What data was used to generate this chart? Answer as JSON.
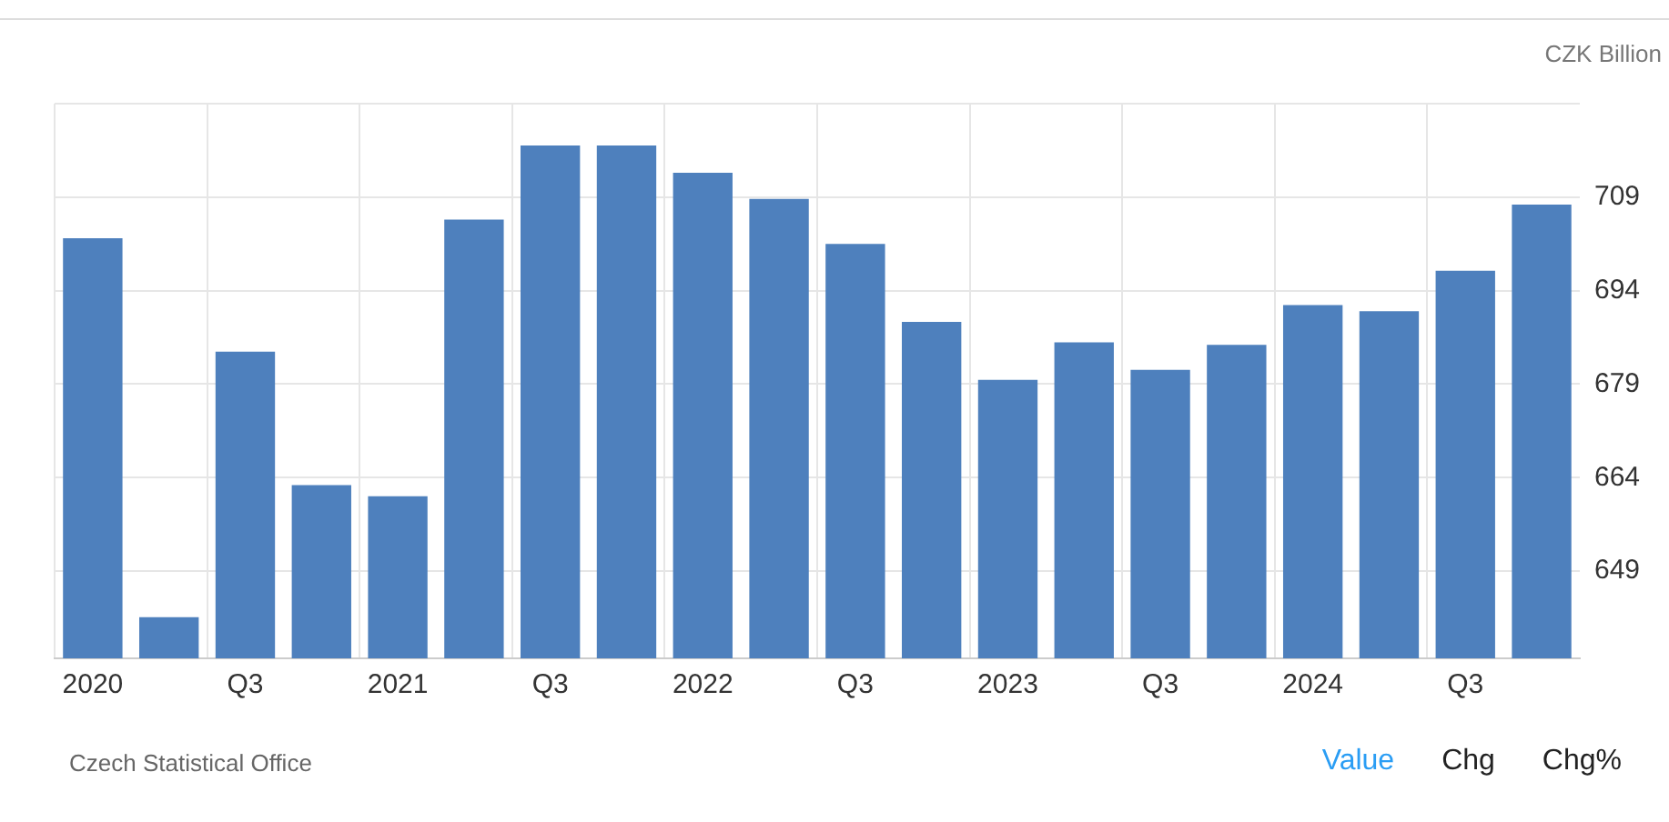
{
  "chart_data": {
    "type": "bar",
    "ylabel": "CZK Billion",
    "categories": [
      "2020",
      null,
      "Q3",
      null,
      "2021",
      null,
      "Q3",
      null,
      "2022",
      null,
      "Q3",
      null,
      "2023",
      null,
      "Q3",
      null,
      "2024",
      null,
      "Q3",
      null
    ],
    "values": [
      702.4,
      641.6,
      684.2,
      662.8,
      661,
      705.4,
      717.3,
      717.3,
      712.9,
      708.7,
      701.5,
      689,
      679.7,
      685.7,
      681.3,
      685.3,
      691.7,
      690.7,
      697.2,
      707.8
    ],
    "color": "#4e80bd",
    "ylim": [
      635,
      724
    ],
    "yticks": [
      649,
      664,
      679,
      694,
      709,
      {
        "value": 724,
        "label": null
      }
    ],
    "grid": true,
    "legend": false,
    "annotations": [
      "Czech Statistical Office",
      "Value",
      "Chg",
      "Chg%"
    ]
  }
}
